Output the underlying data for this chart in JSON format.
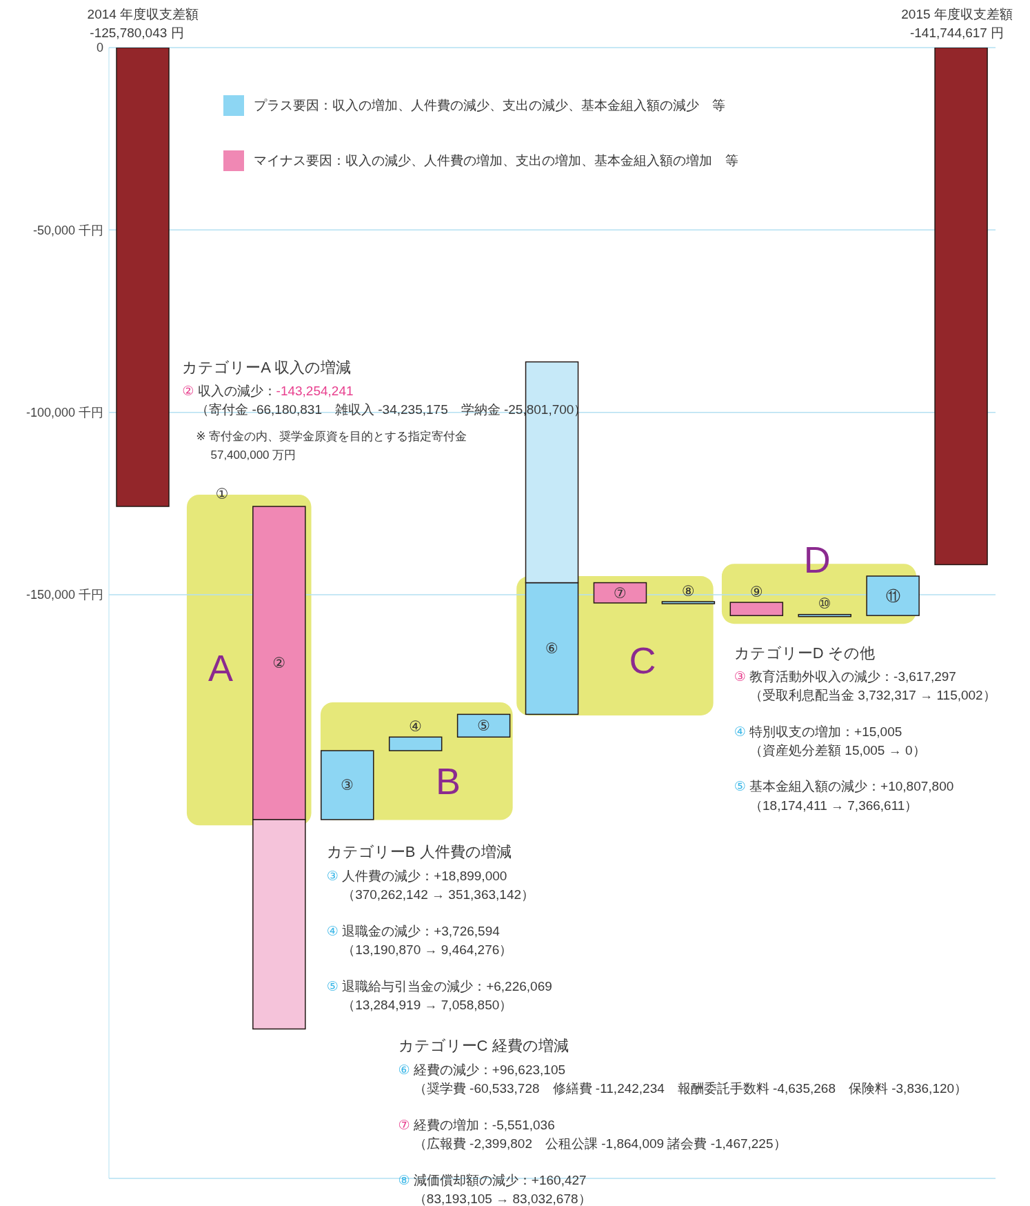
{
  "chart_data": {
    "type": "bar",
    "categories": [
      null,
      null,
      null,
      null,
      null,
      null,
      null,
      null,
      null,
      null,
      null,
      null,
      null
    ],
    "series": [
      {
        "color": "#93262a",
        "base": [
          0,
          null,
          null,
          null,
          null,
          null,
          null,
          null,
          null,
          null,
          null,
          null,
          0
        ],
        "values": [
          -125780,
          null,
          null,
          null,
          null,
          null,
          null,
          null,
          null,
          null,
          null,
          null,
          -141745
        ]
      },
      {
        "name": "プラス要因：収入の増加、人件費の減少、支出の減少、基本金組入額の減少　等",
        "color": "#8dd6f3",
        "base": [
          null,
          null,
          null,
          -211634,
          -192735,
          -189008,
          -182782,
          null,
          -152244,
          null,
          -155701,
          -155686,
          null
        ],
        "values": [
          null,
          null,
          null,
          18899,
          3727,
          6226,
          36089,
          null,
          160,
          null,
          15,
          10808,
          null
        ],
        "value_labels": [
          null,
          null,
          null,
          "③",
          "④",
          "⑤",
          "⑥",
          null,
          "⑧",
          null,
          "⑩",
          "⑪",
          null
        ]
      },
      {
        "name": "マイナス要因：収入の減少、人件費の増加、支出の増加、基本金組入額の増加　等",
        "color": "#f088b4",
        "base": [
          null,
          null,
          -125780,
          null,
          null,
          null,
          null,
          -146693,
          null,
          -152084,
          null,
          null,
          null
        ],
        "values": [
          null,
          null,
          -85854,
          null,
          null,
          null,
          null,
          -5551,
          null,
          -3617,
          null,
          null,
          null
        ],
        "value_labels": [
          null,
          null,
          "②",
          null,
          null,
          null,
          null,
          "⑦",
          null,
          "⑨",
          null,
          null,
          null
        ]
      },
      {
        "color": "#f5c3da",
        "base": [
          null,
          null,
          -211634,
          null,
          null,
          null,
          null,
          null,
          null,
          null,
          null,
          null,
          null
        ],
        "values": [
          null,
          null,
          -57400,
          null,
          null,
          null,
          null,
          null,
          null,
          null,
          null,
          null,
          null
        ]
      },
      {
        "color": "#c6e9f8",
        "base": [
          null,
          null,
          null,
          null,
          null,
          null,
          -146693,
          null,
          null,
          null,
          null,
          null,
          null
        ],
        "values": [
          null,
          null,
          null,
          null,
          null,
          null,
          60534,
          null,
          null,
          null,
          null,
          null,
          null
        ]
      }
    ],
    "ylim": [
      -310000,
      0
    ],
    "yticks": [
      0,
      {
        "value": -50000,
        "label": "-50,000 千円"
      },
      {
        "value": -100000,
        "label": "-100,000 千円"
      },
      {
        "value": -150000,
        "label": "-150,000 千円"
      }
    ],
    "grid": "y",
    "legend": "top left",
    "annotations": [
      "2014 年度収支差額",
      "-125,780,043 円",
      "2015 年度収支差額",
      "-141,744,617 円",
      "①",
      "A",
      "B",
      "C",
      "D",
      "カテゴリーA 収入の増減",
      "② 収入の減少：-143,254,241",
      "（寄付金 -66,180,831　雑収入 -34,235,175　学納金 -25,801,700）",
      "※ 寄付金の内、奨学金原資を目的とする指定寄付金",
      "57,400,000 万円",
      "カテゴリーB 人件費の増減",
      "③ 人件費の減少：+18,899,000",
      "（370,262,142 → 351,363,142）",
      "④ 退職金の減少：+3,726,594",
      "（13,190,870 → 9,464,276）",
      "⑤ 退職給与引当金の減少：+6,226,069",
      "（13,284,919 → 7,058,850）",
      "カテゴリーC 経費の増減",
      "⑥ 経費の減少：+96,623,105",
      "（奨学費 -60,533,728　修繕費 -11,242,234　報酬委託手数料 -4,635,268　保険料 -3,836,120）",
      "⑦ 経費の増加：-5,551,036",
      "（広報費 -2,399,802　公租公課 -1,864,009 諸会費 -1,467,225）",
      "⑧ 減価償却額の減少：+160,427",
      "（83,193,105 → 83,032,678）",
      "カテゴリーD その他",
      "③ 教育活動外収入の減少：-3,617,297",
      "（受取利息配当金 3,732,317 → 115,002）",
      "④ 特別収支の増加：+15,005",
      "（資産処分差額 15,005 → 0）",
      "⑤ 基本金組入額の減少：+10,807,800",
      "（18,174,411 → 7,366,611）"
    ]
  }
}
